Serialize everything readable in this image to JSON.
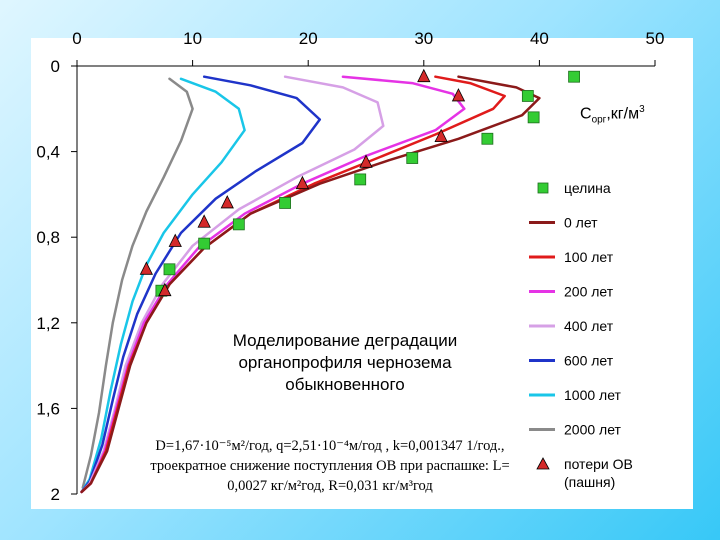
{
  "chart_data": {
    "type": "line",
    "x_axis": {
      "position": "top",
      "range": [
        0,
        50
      ],
      "ticks": [
        "0",
        "10",
        "20",
        "30",
        "40",
        "50"
      ]
    },
    "y_axis": {
      "inverted": true,
      "range": [
        0,
        2
      ],
      "ticks": [
        "0",
        "0,4",
        "0,8",
        "1,2",
        "1,6",
        "2"
      ]
    },
    "y_unit": {
      "main": "С",
      "sub": "орг",
      "rest": ",кг/м",
      "sup": "3"
    },
    "annotation_title": "Моделирование деградации органопрофиля чернозема обыкновенного",
    "annotation_params": "D=1,67·10⁻⁵м²/год, q=2,51·10⁻⁴м/год , k=0,001347 1/год., троекратное снижение поступления ОВ при распашке: L= 0,0027 кг/м²год, R=0,031 кг/м³год",
    "series": [
      {
        "name": "0 лет",
        "color": "#8b1a1a",
        "points": [
          [
            33,
            0.05
          ],
          [
            38,
            0.1
          ],
          [
            40,
            0.15
          ],
          [
            38.5,
            0.23
          ],
          [
            33,
            0.34
          ],
          [
            27,
            0.44
          ],
          [
            21,
            0.55
          ],
          [
            15,
            0.69
          ],
          [
            11,
            0.85
          ],
          [
            8,
            1.02
          ],
          [
            6,
            1.2
          ],
          [
            4.6,
            1.4
          ],
          [
            3.6,
            1.6
          ],
          [
            2.6,
            1.8
          ],
          [
            1.2,
            1.95
          ],
          [
            0.4,
            1.99
          ]
        ]
      },
      {
        "name": "100 лет",
        "color": "#e01b1b",
        "points": [
          [
            31,
            0.05
          ],
          [
            34,
            0.08
          ],
          [
            37,
            0.14
          ],
          [
            36,
            0.2
          ],
          [
            31,
            0.32
          ],
          [
            26,
            0.43
          ],
          [
            20.5,
            0.55
          ],
          [
            15,
            0.69
          ],
          [
            11,
            0.85
          ],
          [
            8,
            1.02
          ],
          [
            6,
            1.2
          ],
          [
            4.5,
            1.4
          ],
          [
            3.5,
            1.6
          ],
          [
            2.5,
            1.8
          ],
          [
            1.2,
            1.95
          ],
          [
            0.4,
            1.99
          ]
        ]
      },
      {
        "name": "200 лет",
        "color": "#e533e5",
        "points": [
          [
            23,
            0.05
          ],
          [
            29,
            0.08
          ],
          [
            32.5,
            0.13
          ],
          [
            33.5,
            0.2
          ],
          [
            31,
            0.3
          ],
          [
            25,
            0.42
          ],
          [
            19.5,
            0.55
          ],
          [
            14.5,
            0.69
          ],
          [
            10.5,
            0.85
          ],
          [
            7.8,
            1.02
          ],
          [
            5.8,
            1.2
          ],
          [
            4.4,
            1.4
          ],
          [
            3.4,
            1.6
          ],
          [
            2.4,
            1.8
          ],
          [
            1.2,
            1.95
          ],
          [
            0.4,
            1.99
          ]
        ]
      },
      {
        "name": "400 лет",
        "color": "#d6a0e6",
        "points": [
          [
            18,
            0.05
          ],
          [
            23,
            0.1
          ],
          [
            26,
            0.17
          ],
          [
            26.5,
            0.28
          ],
          [
            24,
            0.39
          ],
          [
            19,
            0.52
          ],
          [
            14,
            0.67
          ],
          [
            10,
            0.84
          ],
          [
            7.4,
            1.02
          ],
          [
            5.6,
            1.2
          ],
          [
            4.2,
            1.4
          ],
          [
            3.3,
            1.6
          ],
          [
            2.3,
            1.8
          ],
          [
            1.1,
            1.95
          ],
          [
            0.4,
            1.99
          ]
        ]
      },
      {
        "name": "600 лет",
        "color": "#1f34c9",
        "points": [
          [
            11,
            0.05
          ],
          [
            15,
            0.09
          ],
          [
            19,
            0.15
          ],
          [
            21,
            0.25
          ],
          [
            19.5,
            0.36
          ],
          [
            15.5,
            0.49
          ],
          [
            12,
            0.62
          ],
          [
            9,
            0.78
          ],
          [
            6.8,
            0.97
          ],
          [
            5.2,
            1.16
          ],
          [
            4,
            1.36
          ],
          [
            3.1,
            1.56
          ],
          [
            2.2,
            1.77
          ],
          [
            1.1,
            1.94
          ],
          [
            0.4,
            1.99
          ]
        ]
      },
      {
        "name": "1000 лет",
        "color": "#19c6e8",
        "points": [
          [
            9,
            0.06
          ],
          [
            12,
            0.12
          ],
          [
            14,
            0.2
          ],
          [
            14.5,
            0.3
          ],
          [
            12.5,
            0.45
          ],
          [
            10,
            0.6
          ],
          [
            7.5,
            0.78
          ],
          [
            6,
            0.93
          ],
          [
            4.8,
            1.1
          ],
          [
            3.8,
            1.3
          ],
          [
            2.9,
            1.52
          ],
          [
            2.1,
            1.74
          ],
          [
            1.1,
            1.93
          ],
          [
            0.4,
            1.99
          ]
        ]
      },
      {
        "name": "2000 лет",
        "color": "#8a8a8a",
        "points": [
          [
            8,
            0.06
          ],
          [
            9.5,
            0.12
          ],
          [
            10,
            0.2
          ],
          [
            9,
            0.35
          ],
          [
            7.5,
            0.52
          ],
          [
            6,
            0.68
          ],
          [
            4.8,
            0.84
          ],
          [
            3.9,
            1.0
          ],
          [
            3.1,
            1.2
          ],
          [
            2.5,
            1.4
          ],
          [
            1.9,
            1.62
          ],
          [
            1.2,
            1.82
          ],
          [
            0.5,
            1.97
          ]
        ]
      }
    ],
    "markers": {
      "virgin": {
        "name": "целина",
        "color": "#33cc33",
        "points": [
          [
            43,
            0.05
          ],
          [
            39,
            0.14
          ],
          [
            39.5,
            0.24
          ],
          [
            35.5,
            0.34
          ],
          [
            29,
            0.43
          ],
          [
            24.5,
            0.53
          ],
          [
            18,
            0.64
          ],
          [
            14,
            0.74
          ],
          [
            11,
            0.83
          ],
          [
            8,
            0.95
          ],
          [
            7.3,
            1.05
          ]
        ]
      },
      "losses": {
        "name": "потери ОВ (пашня)",
        "color": "#d42a2a",
        "points": [
          [
            30,
            0.05
          ],
          [
            33,
            0.14
          ],
          [
            31.5,
            0.33
          ],
          [
            25,
            0.45
          ],
          [
            19.5,
            0.55
          ],
          [
            13,
            0.64
          ],
          [
            11,
            0.73
          ],
          [
            8.5,
            0.82
          ],
          [
            6,
            0.95
          ],
          [
            7.6,
            1.05
          ]
        ]
      }
    },
    "legend": [
      {
        "kind": "square",
        "label": "целина",
        "color": "#33cc33"
      },
      {
        "kind": "line",
        "label": "0 лет",
        "color": "#8b1a1a"
      },
      {
        "kind": "line",
        "label": "100 лет",
        "color": "#e01b1b"
      },
      {
        "kind": "line",
        "label": "200 лет",
        "color": "#e533e5"
      },
      {
        "kind": "line",
        "label": "400 лет",
        "color": "#d6a0e6"
      },
      {
        "kind": "line",
        "label": "600 лет",
        "color": "#1f34c9"
      },
      {
        "kind": "line",
        "label": "1000 лет",
        "color": "#19c6e8"
      },
      {
        "kind": "line",
        "label": "2000 лет",
        "color": "#8a8a8a"
      },
      {
        "kind": "triangle",
        "label": "потери ОВ",
        "label2": "(пашня)",
        "color": "#d42a2a"
      }
    ]
  }
}
